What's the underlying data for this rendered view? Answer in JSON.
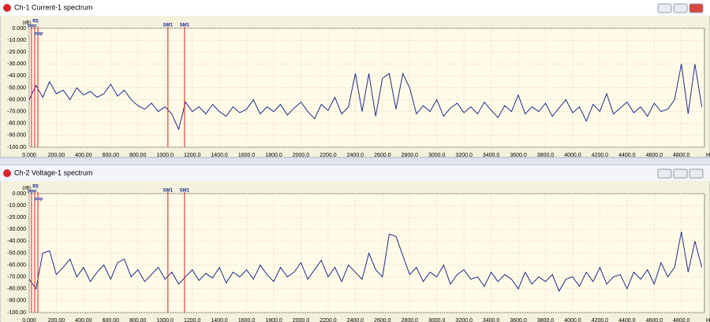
{
  "chart_data": [
    {
      "type": "line",
      "title": "Ch-1 Current-1 spectrum",
      "y_unit": "(dB)",
      "x_unit": "Hz",
      "color": "#1f2a8c",
      "grid": true,
      "xlim": [
        0,
        4970
      ],
      "ylim": [
        -100,
        0
      ],
      "yticks": [
        {
          "value": 0,
          "label": "0.000"
        },
        {
          "value": -10,
          "label": "-10.000"
        },
        {
          "value": -20,
          "label": "-20.000"
        },
        {
          "value": -30,
          "label": "-30.000"
        },
        {
          "value": -40,
          "label": "-40.000"
        },
        {
          "value": -50,
          "label": "-50.000"
        },
        {
          "value": -60,
          "label": "-60.000"
        },
        {
          "value": -70,
          "label": "-70.000"
        },
        {
          "value": -80,
          "label": "-80.000"
        },
        {
          "value": -90,
          "label": "-90.000"
        },
        {
          "value": -100,
          "label": "-100.00"
        }
      ],
      "xticks": [
        {
          "value": 0,
          "label": "0.000"
        },
        {
          "value": 200,
          "label": "200.00"
        },
        {
          "value": 400,
          "label": "400.00"
        },
        {
          "value": 600,
          "label": "600.00"
        },
        {
          "value": 800,
          "label": "800.00"
        },
        {
          "value": 1000,
          "label": "1000.0"
        },
        {
          "value": 1200,
          "label": "1200.0"
        },
        {
          "value": 1400,
          "label": "1400.0"
        },
        {
          "value": 1600,
          "label": "1600.0"
        },
        {
          "value": 1800,
          "label": "1800.0"
        },
        {
          "value": 2000,
          "label": "2000.0"
        },
        {
          "value": 2200,
          "label": "2200.0"
        },
        {
          "value": 2400,
          "label": "2400.0"
        },
        {
          "value": 2600,
          "label": "2600.0"
        },
        {
          "value": 2800,
          "label": "2800.0"
        },
        {
          "value": 3000,
          "label": "3000.0"
        },
        {
          "value": 3200,
          "label": "3200.0"
        },
        {
          "value": 3400,
          "label": "3400.0"
        },
        {
          "value": 3600,
          "label": "3600.0"
        },
        {
          "value": 3800,
          "label": "3800.0"
        },
        {
          "value": 4000,
          "label": "4000.0"
        },
        {
          "value": 4200,
          "label": "4200.0"
        },
        {
          "value": 4400,
          "label": "4400.0"
        },
        {
          "value": 4600,
          "label": "4600.0"
        },
        {
          "value": 4800,
          "label": "4800.0"
        }
      ],
      "markers": [
        {
          "label": "PPF",
          "x": 17
        },
        {
          "label": "R5",
          "x": 41
        },
        {
          "label": "PPF",
          "x": 64
        },
        {
          "label": "SM1",
          "x": 1021
        },
        {
          "label": "SM1",
          "x": 1143
        }
      ],
      "x": [
        0,
        50,
        100,
        150,
        200,
        250,
        300,
        350,
        400,
        450,
        500,
        550,
        600,
        650,
        700,
        750,
        800,
        850,
        900,
        950,
        1000,
        1050,
        1100,
        1150,
        1200,
        1250,
        1300,
        1350,
        1400,
        1450,
        1500,
        1550,
        1600,
        1650,
        1700,
        1750,
        1800,
        1850,
        1900,
        1950,
        2000,
        2050,
        2100,
        2150,
        2200,
        2250,
        2300,
        2350,
        2400,
        2450,
        2500,
        2550,
        2600,
        2650,
        2700,
        2750,
        2800,
        2850,
        2900,
        2950,
        3000,
        3050,
        3100,
        3150,
        3200,
        3250,
        3300,
        3350,
        3400,
        3450,
        3500,
        3550,
        3600,
        3650,
        3700,
        3750,
        3800,
        3850,
        3900,
        3950,
        4000,
        4050,
        4100,
        4150,
        4200,
        4250,
        4300,
        4350,
        4400,
        4450,
        4500,
        4550,
        4600,
        4650,
        4700,
        4750,
        4800,
        4850,
        4900,
        4950
      ],
      "values": [
        -60,
        -48,
        -58,
        -45,
        -55,
        -52,
        -60,
        -50,
        -56,
        -53,
        -58,
        -55,
        -47,
        -57,
        -52,
        -60,
        -65,
        -68,
        -63,
        -70,
        -66,
        -72,
        -85,
        -62,
        -70,
        -66,
        -72,
        -64,
        -70,
        -74,
        -66,
        -71,
        -68,
        -60,
        -72,
        -66,
        -70,
        -64,
        -73,
        -67,
        -62,
        -70,
        -76,
        -64,
        -69,
        -58,
        -72,
        -66,
        -38,
        -70,
        -38,
        -74,
        -42,
        -38,
        -68,
        -38,
        -50,
        -72,
        -65,
        -70,
        -60,
        -74,
        -67,
        -63,
        -71,
        -66,
        -72,
        -62,
        -69,
        -75,
        -65,
        -70,
        -56,
        -72,
        -66,
        -70,
        -63,
        -74,
        -67,
        -60,
        -71,
        -66,
        -78,
        -64,
        -70,
        -55,
        -72,
        -67,
        -62,
        -71,
        -66,
        -74,
        -63,
        -70,
        -68,
        -60,
        -30,
        -72,
        -30,
        -66
      ]
    },
    {
      "type": "line",
      "title": "Ch-2 Voltage-1 spectrum",
      "y_unit": "(dB)",
      "x_unit": "Hz",
      "color": "#1f2a8c",
      "grid": true,
      "xlim": [
        0,
        4970
      ],
      "ylim": [
        -100,
        0
      ],
      "yticks": [
        {
          "value": 0,
          "label": "0.000"
        },
        {
          "value": -10,
          "label": "-10.000"
        },
        {
          "value": -20,
          "label": "-20.000"
        },
        {
          "value": -30,
          "label": "-30.000"
        },
        {
          "value": -40,
          "label": "-40.000"
        },
        {
          "value": -50,
          "label": "-50.000"
        },
        {
          "value": -60,
          "label": "-60.000"
        },
        {
          "value": -70,
          "label": "-70.000"
        },
        {
          "value": -80,
          "label": "-80.000"
        },
        {
          "value": -90,
          "label": "-90.000"
        },
        {
          "value": -100,
          "label": "-100.00"
        }
      ],
      "xticks": [
        {
          "value": 0,
          "label": "0.000"
        },
        {
          "value": 200,
          "label": "200.00"
        },
        {
          "value": 400,
          "label": "400.00"
        },
        {
          "value": 600,
          "label": "600.00"
        },
        {
          "value": 800,
          "label": "800.00"
        },
        {
          "value": 1000,
          "label": "1000.0"
        },
        {
          "value": 1200,
          "label": "1200.0"
        },
        {
          "value": 1400,
          "label": "1400.0"
        },
        {
          "value": 1600,
          "label": "1600.0"
        },
        {
          "value": 1800,
          "label": "1800.0"
        },
        {
          "value": 2000,
          "label": "2000.0"
        },
        {
          "value": 2200,
          "label": "2200.0"
        },
        {
          "value": 2400,
          "label": "2400.0"
        },
        {
          "value": 2600,
          "label": "2600.0"
        },
        {
          "value": 2800,
          "label": "2800.0"
        },
        {
          "value": 3000,
          "label": "3000.0"
        },
        {
          "value": 3200,
          "label": "3200.0"
        },
        {
          "value": 3400,
          "label": "3400.0"
        },
        {
          "value": 3600,
          "label": "3600.0"
        },
        {
          "value": 3800,
          "label": "3800.0"
        },
        {
          "value": 4000,
          "label": "4000.0"
        },
        {
          "value": 4200,
          "label": "4200.0"
        },
        {
          "value": 4400,
          "label": "4400.0"
        },
        {
          "value": 4600,
          "label": "4600.0"
        },
        {
          "value": 4800,
          "label": "4800.0"
        }
      ],
      "markers": [
        {
          "label": "PPF",
          "x": 17
        },
        {
          "label": "R5",
          "x": 41
        },
        {
          "label": "PPF",
          "x": 64
        },
        {
          "label": "SM1",
          "x": 1021
        },
        {
          "label": "SM1",
          "x": 1143
        }
      ],
      "x": [
        0,
        50,
        100,
        150,
        200,
        250,
        300,
        350,
        400,
        450,
        500,
        550,
        600,
        650,
        700,
        750,
        800,
        850,
        900,
        950,
        1000,
        1050,
        1100,
        1150,
        1200,
        1250,
        1300,
        1350,
        1400,
        1450,
        1500,
        1550,
        1600,
        1650,
        1700,
        1750,
        1800,
        1850,
        1900,
        1950,
        2000,
        2050,
        2100,
        2150,
        2200,
        2250,
        2300,
        2350,
        2400,
        2450,
        2500,
        2550,
        2600,
        2650,
        2700,
        2750,
        2800,
        2850,
        2900,
        2950,
        3000,
        3050,
        3100,
        3150,
        3200,
        3250,
        3300,
        3350,
        3400,
        3450,
        3500,
        3550,
        3600,
        3650,
        3700,
        3750,
        3800,
        3850,
        3900,
        3950,
        4000,
        4050,
        4100,
        4150,
        4200,
        4250,
        4300,
        4350,
        4400,
        4450,
        4500,
        4550,
        4600,
        4650,
        4700,
        4750,
        4800,
        4850,
        4900,
        4950
      ],
      "values": [
        -72,
        -80,
        -50,
        -48,
        -68,
        -62,
        -55,
        -70,
        -62,
        -74,
        -66,
        -60,
        -72,
        -58,
        -55,
        -70,
        -64,
        -74,
        -68,
        -62,
        -72,
        -66,
        -76,
        -70,
        -64,
        -73,
        -67,
        -71,
        -62,
        -75,
        -66,
        -70,
        -64,
        -72,
        -60,
        -68,
        -74,
        -62,
        -70,
        -66,
        -58,
        -72,
        -64,
        -56,
        -70,
        -62,
        -74,
        -60,
        -66,
        -72,
        -50,
        -64,
        -70,
        -34,
        -36,
        -52,
        -68,
        -62,
        -74,
        -66,
        -70,
        -60,
        -76,
        -68,
        -64,
        -72,
        -70,
        -78,
        -66,
        -74,
        -68,
        -72,
        -80,
        -66,
        -76,
        -70,
        -74,
        -68,
        -82,
        -72,
        -70,
        -78,
        -66,
        -74,
        -62,
        -76,
        -70,
        -68,
        -80,
        -66,
        -72,
        -64,
        -76,
        -58,
        -70,
        -62,
        -32,
        -66,
        -40,
        -62
      ]
    }
  ]
}
